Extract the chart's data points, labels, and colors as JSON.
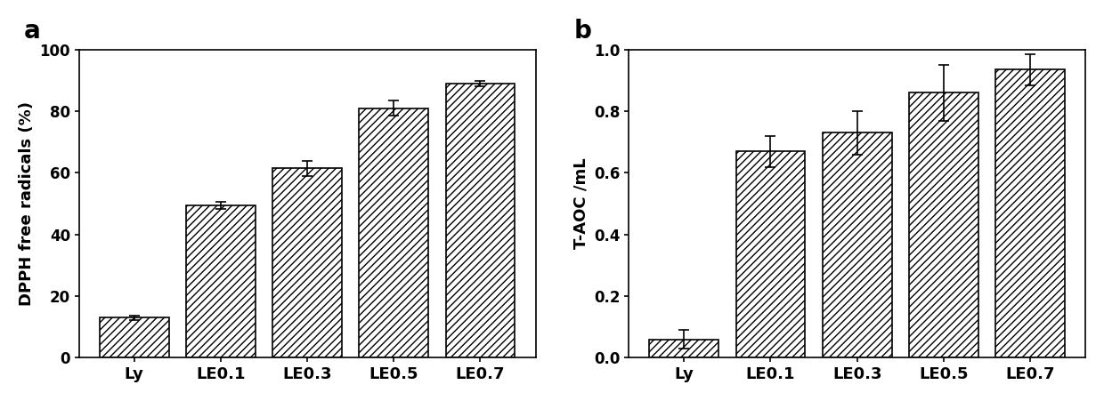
{
  "chart_a": {
    "categories": [
      "Ly",
      "LE0.1",
      "LE0.3",
      "LE0.5",
      "LE0.7"
    ],
    "values": [
      13.0,
      49.5,
      61.5,
      81.0,
      89.0
    ],
    "errors": [
      0.8,
      1.2,
      2.5,
      2.5,
      0.8
    ],
    "ylabel": "DPPH free radicals (%)",
    "ylim": [
      0,
      100
    ],
    "yticks": [
      0,
      20,
      40,
      60,
      80,
      100
    ],
    "label": "a"
  },
  "chart_b": {
    "categories": [
      "Ly",
      "LE0.1",
      "LE0.3",
      "LE0.5",
      "LE0.7"
    ],
    "values": [
      0.06,
      0.67,
      0.73,
      0.86,
      0.935
    ],
    "errors": [
      0.03,
      0.05,
      0.07,
      0.09,
      0.05
    ],
    "ylabel": "T-AOC /mL",
    "ylim": [
      0,
      1.0
    ],
    "yticks": [
      0.0,
      0.2,
      0.4,
      0.6,
      0.8,
      1.0
    ],
    "label": "b"
  },
  "bar_color": "#ffffff",
  "bar_edgecolor": "#000000",
  "hatch": "////",
  "hatch_color": "#000000",
  "background_color": "#ffffff",
  "figsize": [
    12.4,
    4.51
  ],
  "dpi": 100
}
